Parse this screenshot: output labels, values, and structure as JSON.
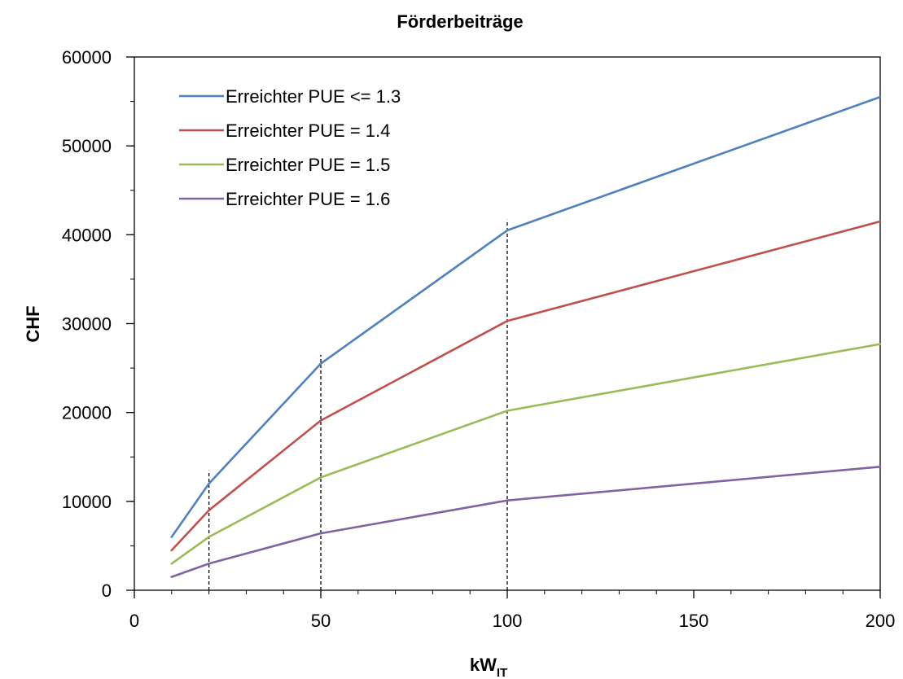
{
  "chart_data": {
    "type": "line",
    "title": "Förderbeiträge",
    "xlabel": {
      "main": "kW",
      "sub": "IT"
    },
    "ylabel": "CHF",
    "xlim": [
      0,
      200
    ],
    "ylim": [
      0,
      60000
    ],
    "x_ticks": [
      0,
      50,
      100,
      150,
      200
    ],
    "x_minor_step": 10,
    "y_ticks": [
      0,
      10000,
      20000,
      30000,
      40000,
      50000,
      60000
    ],
    "y_minor_step": 5000,
    "grid": false,
    "legend_position": "top-left",
    "x": [
      10,
      20,
      50,
      100,
      200
    ],
    "series": [
      {
        "name": "Erreichter PUE <= 1.3",
        "color": "#4f81bd",
        "values": [
          6000,
          12000,
          25500,
          40500,
          55500
        ]
      },
      {
        "name": "Erreichter PUE = 1.4",
        "color": "#c0504d",
        "values": [
          4500,
          9000,
          19100,
          30300,
          41500
        ]
      },
      {
        "name": "Erreichter PUE = 1.5",
        "color": "#9bbb59",
        "values": [
          3000,
          6000,
          12700,
          20200,
          27700
        ]
      },
      {
        "name": "Erreichter PUE = 1.6",
        "color": "#8064a2",
        "values": [
          1500,
          3000,
          6400,
          10100,
          13900
        ]
      }
    ],
    "reference_lines": [
      {
        "x": 20,
        "y_top": 13500
      },
      {
        "x": 50,
        "y_top": 26500
      },
      {
        "x": 100,
        "y_top": 41700
      }
    ]
  }
}
